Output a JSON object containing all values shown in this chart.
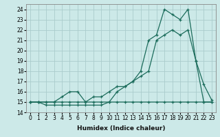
{
  "xlabel": "Humidex (Indice chaleur)",
  "x_values": [
    0,
    1,
    2,
    3,
    4,
    5,
    6,
    7,
    8,
    9,
    10,
    11,
    12,
    13,
    14,
    15,
    16,
    17,
    18,
    19,
    20,
    21,
    22,
    23
  ],
  "line1": [
    15,
    15,
    15,
    15,
    15,
    15,
    15,
    15,
    15,
    15,
    15,
    16,
    16.5,
    17,
    17.5,
    18,
    21,
    21.5,
    22,
    21.5,
    22,
    19,
    15,
    15
  ],
  "line2": [
    15,
    15,
    14.7,
    14.7,
    14.7,
    14.7,
    14.7,
    14.7,
    14.7,
    14.7,
    15,
    15,
    15,
    15,
    15,
    15,
    15,
    15,
    15,
    15,
    15,
    15,
    15,
    15
  ],
  "line3": [
    15,
    15,
    15,
    15,
    15.5,
    16,
    16,
    15,
    15.5,
    15.5,
    16,
    16.5,
    16.5,
    17,
    18,
    21,
    21.5,
    24,
    23.5,
    23,
    24,
    19,
    16.7,
    15.2
  ],
  "bg_color": "#cce9e8",
  "line_color": "#1a6b5a",
  "grid_color": "#aacccc",
  "xlim": [
    -0.5,
    23.5
  ],
  "ylim": [
    14,
    24.5
  ],
  "yticks": [
    14,
    15,
    16,
    17,
    18,
    19,
    20,
    21,
    22,
    23,
    24
  ],
  "xticks": [
    0,
    1,
    2,
    3,
    4,
    5,
    6,
    7,
    8,
    9,
    10,
    11,
    12,
    13,
    14,
    15,
    16,
    17,
    18,
    19,
    20,
    21,
    22,
    23
  ],
  "tick_fontsize": 5.5,
  "xlabel_fontsize": 6.5
}
